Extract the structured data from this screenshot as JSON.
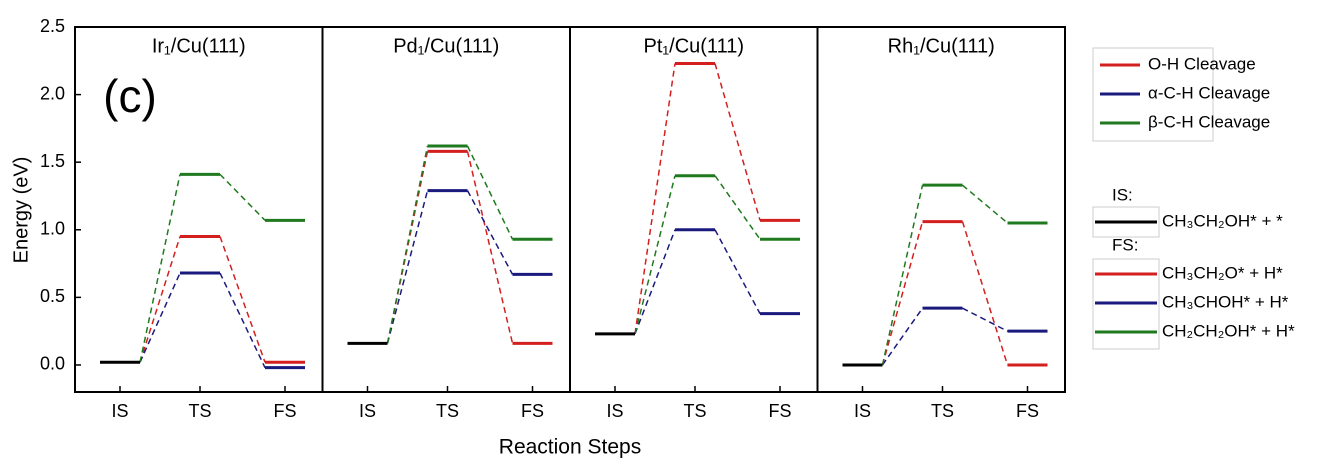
{
  "chart_data": {
    "type": "line",
    "annotation": "(c)",
    "y_label": "Energy (eV)",
    "x_label": "Reaction Steps",
    "categories": [
      "IS",
      "TS",
      "FS"
    ],
    "ylim": [
      -0.2,
      2.5
    ],
    "yticks": [
      {
        "value": 0,
        "label": "0.0"
      },
      {
        "value": 0.5,
        "label": "0.5"
      },
      {
        "value": 1,
        "label": "1.0"
      },
      {
        "value": 1.5,
        "label": "1.5"
      },
      {
        "value": 2,
        "label": "2.0"
      },
      {
        "value": 2.5,
        "label": "2.5"
      }
    ],
    "series": [
      {
        "name": "O-H Cleavage",
        "color": "#d41f1f"
      },
      {
        "name": "α-C-H Cleavage",
        "color": "#1a1a7e"
      },
      {
        "name": "β-C-H Cleavage",
        "color": "#1f7a1f"
      }
    ],
    "initial_state": {
      "heading": "IS:",
      "name": "CH₃CH₂OH* + *",
      "color": "#000000"
    },
    "final_state": {
      "heading": "FS:",
      "names": [
        "CH₃CH₂O* + H*",
        "CH₃CHOH* + H*",
        "CH₂CH₂OH* + H*"
      ]
    },
    "panels": [
      {
        "title": "Ir₁/Cu(111)",
        "is_value": 0.02,
        "values": [
          [
            0.95,
            0.02
          ],
          [
            0.68,
            -0.02
          ],
          [
            1.41,
            1.07
          ]
        ]
      },
      {
        "title": "Pd₁/Cu(111)",
        "is_value": 0.16,
        "values": [
          [
            1.58,
            0.16
          ],
          [
            1.29,
            0.67
          ],
          [
            1.62,
            0.93
          ]
        ]
      },
      {
        "title": "Pt₁/Cu(111)",
        "is_value": 0.23,
        "values": [
          [
            2.23,
            1.07
          ],
          [
            1.0,
            0.38
          ],
          [
            1.4,
            0.93
          ]
        ]
      },
      {
        "title": "Rh₁/Cu(111)",
        "is_value": 0.0,
        "values": [
          [
            1.06,
            0.0
          ],
          [
            0.42,
            0.25
          ],
          [
            1.33,
            1.05
          ]
        ]
      }
    ]
  }
}
